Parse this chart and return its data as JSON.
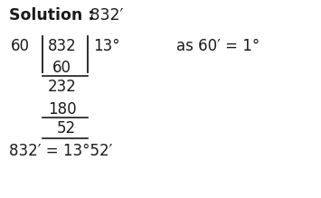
{
  "background_color": "#ffffff",
  "fig_width": 3.55,
  "fig_height": 2.19,
  "dpi": 100,
  "title_bold": "Solution :",
  "title_normal": " 832′",
  "divisor": "60",
  "dividend": "832",
  "quotient": "13°",
  "note": "as 60′ = 1°",
  "sub1": "60",
  "rem1": "232",
  "sub2": "180",
  "rem2": "52",
  "result": "832′ = 13°52′",
  "text_color": "#1a1a1a",
  "font_size_title": 12.5,
  "font_size_body": 12.0
}
